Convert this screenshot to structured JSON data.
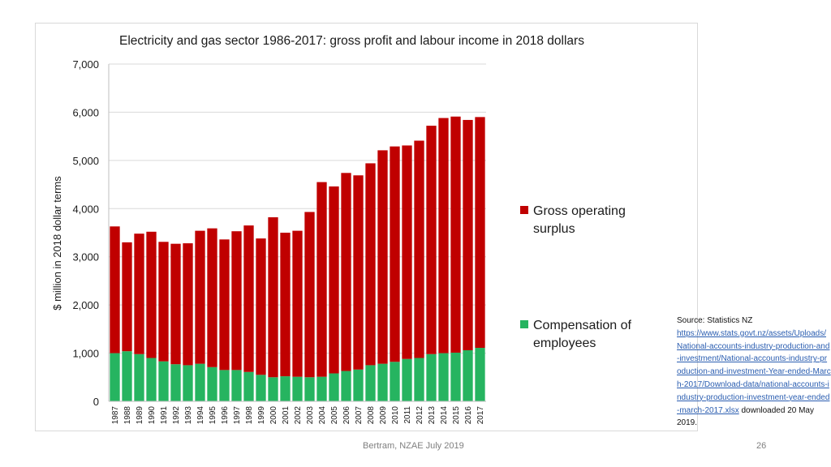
{
  "chart_data": {
    "type": "bar",
    "stacked": true,
    "title": "Electricity and gas sector 1986-2017: gross profit and labour income in 2018 dollars",
    "ylabel": "$ million in 2018 dollar terms",
    "xlabel": "",
    "ylim": [
      0,
      7000
    ],
    "yticks": [
      "0",
      "1,000",
      "2,000",
      "3,000",
      "4,000",
      "5,000",
      "6,000",
      "7,000"
    ],
    "grid": true,
    "legend_position": "right",
    "categories": [
      "1987",
      "1988",
      "1989",
      "1990",
      "1991",
      "1992",
      "1993",
      "1994",
      "1995",
      "1996",
      "1997",
      "1998",
      "1999",
      "2000",
      "2001",
      "2002",
      "2003",
      "2004",
      "2005",
      "2006",
      "2007",
      "2008",
      "2009",
      "2010",
      "2011",
      "2012",
      "2013",
      "2014",
      "2015",
      "2016",
      "2017"
    ],
    "series": [
      {
        "name": "Compensation of employees",
        "color": "#26b460",
        "values": [
          1000,
          1040,
          980,
          900,
          830,
          770,
          750,
          780,
          710,
          650,
          650,
          610,
          550,
          500,
          520,
          510,
          500,
          510,
          580,
          630,
          660,
          750,
          780,
          820,
          880,
          900,
          980,
          1000,
          1010,
          1060,
          1110
        ]
      },
      {
        "name": "Gross operating surplus",
        "color": "#c00000",
        "values": [
          2630,
          2260,
          2500,
          2620,
          2480,
          2500,
          2530,
          2760,
          2880,
          2710,
          2880,
          3040,
          2830,
          3320,
          2980,
          3030,
          3430,
          4040,
          3880,
          4110,
          4030,
          4190,
          4430,
          4470,
          4430,
          4510,
          4740,
          4880,
          4900,
          4780,
          4790
        ]
      }
    ]
  },
  "source": {
    "label": "Source: Statistics NZ",
    "url": "https://www.stats.govt.nz/assets/Uploads/National-accounts-industry-production-and-investment/National-accounts-industry-production-and-investment-Year-ended-March-2017/Download-data/national-accounts-industry-production-investment-year-ended-march-2017.xlsx",
    "suffix": " downloaded 20 May 2019."
  },
  "footer": "Bertram, NZAE July 2019",
  "page_number": "26"
}
